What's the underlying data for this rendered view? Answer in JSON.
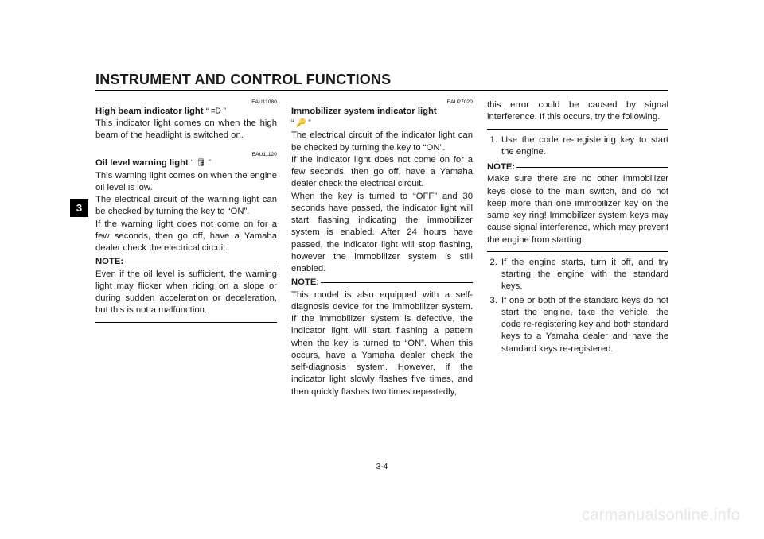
{
  "header": {
    "title": "INSTRUMENT AND CONTROL FUNCTIONS"
  },
  "tab": {
    "number": "3"
  },
  "page_number": "3-4",
  "watermark": "carmanualsonline.info",
  "col1": {
    "code1": "EAU11080",
    "hb_title": "High beam indicator light",
    "hb_symbol": "“ ≡D ”",
    "hb_text": "This indicator light comes on when the high beam of the headlight is switched on.",
    "code2": "EAU11120",
    "oil_title": "Oil level warning light",
    "oil_symbol": "“ 🛢 ”",
    "oil_p1": "This warning light comes on when the engine oil level is low.",
    "oil_p2": "The electrical circuit of the warning light can be checked by turning the key to “ON”.",
    "oil_p3": "If the warning light does not come on for a few seconds, then go off, have a Yamaha dealer check the electrical circuit.",
    "note_label": "NOTE:",
    "note_text": "Even if the oil level is sufficient, the warning light may flicker when riding on a slope or during sudden acceleration or deceleration, but this is not a malfunction."
  },
  "col2": {
    "code1": "EAU27020",
    "im_title": "Immobilizer system indicator light",
    "im_symbol": "“ 🔑 ”",
    "im_p1": "The electrical circuit of the indicator light can be checked by turning the key to “ON”.",
    "im_p2": "If the indicator light does not come on for a few seconds, then go off, have a Yamaha dealer check the electrical circuit.",
    "im_p3": "When the key is turned to “OFF” and 30 seconds have passed, the indicator light will start flashing indicating the immobilizer system is enabled. After 24 hours have passed, the indicator light will stop flashing, however the immobilizer system is still enabled.",
    "note_label": "NOTE:",
    "note_text": "This model is also equipped with a self-diagnosis device for the immobilizer system. If the immobilizer system is defective, the indicator light will start flashing a pattern when the key is turned to “ON”. When this occurs, have a Yamaha dealer check the self-diagnosis system. However, if the indicator light slowly flashes five times, and then quickly flashes two times repeatedly,"
  },
  "col3": {
    "intro": "this error could be caused by signal interference. If this occurs, try the following.",
    "step1": "Use the code re-registering key to start the engine.",
    "note_label": "NOTE:",
    "note_text": "Make sure there are no other immobilizer keys close to the main switch, and do not keep more than one immobilizer key on the same key ring! Immobilizer system keys may cause signal interference, which may prevent the engine from starting.",
    "step2": "If the engine starts, turn it off, and try starting the engine with the standard keys.",
    "step3": "If one or both of the standard keys do not start the engine, take the vehicle, the code re-registering key and both standard keys to a Yamaha dealer and have the standard keys re-registered."
  }
}
